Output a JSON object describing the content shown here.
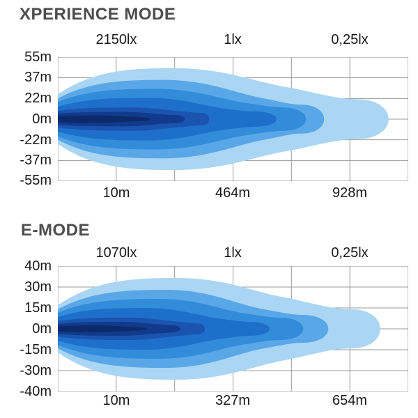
{
  "chart_data": [
    {
      "type": "contour",
      "title": "XPERIENCE MODE",
      "illuminance_labels": [
        "2150lx",
        "1lx",
        "0,25lx"
      ],
      "distance_labels": [
        "10m",
        "464m",
        "928m"
      ],
      "beam_width_labels": [
        "55m",
        "37m",
        "22m",
        "0m",
        "-22m",
        "-37m",
        "-55m"
      ],
      "lux_at_distance": [
        {
          "lux": "2150lx",
          "distance": "10m"
        },
        {
          "lux": "1lx",
          "distance": "464m"
        },
        {
          "lux": "0,25lx",
          "distance": "928m"
        }
      ],
      "grid": {
        "cols": 6,
        "rows": 6,
        "line_color": "#9a9a9a",
        "border_color": "#8a8a8a"
      },
      "bands": [
        {
          "color": "#aad6f3",
          "hL": 36,
          "xM": 165,
          "hM": 74,
          "xW": 335,
          "hW": 45,
          "xT": 428,
          "hT": 29,
          "tip": 472
        },
        {
          "color": "#5aa7e8",
          "hL": 30,
          "xM": 150,
          "hM": 57,
          "xW": 300,
          "hW": 29,
          "xT": 348,
          "hT": 21,
          "tip": 380
        },
        {
          "color": "#338cda",
          "hL": 25,
          "xM": 140,
          "hM": 44,
          "xW": 272,
          "hW": 23,
          "xT": 322,
          "hT": 17,
          "tip": 354
        },
        {
          "color": "#1e6fca",
          "hL": 18,
          "xM": 128,
          "hM": 31,
          "xW": 240,
          "hW": 15,
          "xT": 282,
          "hT": 11,
          "tip": 312
        },
        {
          "color": "#1a54ae",
          "hL": 12,
          "xM": 105,
          "hM": 17,
          "xW": 180,
          "hW": 11,
          "xT": 205,
          "hT": 9,
          "tip": 216
        },
        {
          "color": "#123a8c",
          "hL": 8,
          "xM": 92,
          "hM": 10.5,
          "xW": 150,
          "hW": 7,
          "xT": 166,
          "hT": 6,
          "tip": 181
        },
        {
          "color": "#0c2a6a",
          "hL": 4,
          "xM": 55,
          "hM": 5.5,
          "xW": 92,
          "hW": 4,
          "xT": 104,
          "hT": 3.5,
          "tip": 132
        }
      ]
    },
    {
      "type": "contour",
      "title": "E-MODE",
      "illuminance_labels": [
        "1070lx",
        "1lx",
        "0,25lx"
      ],
      "distance_labels": [
        "10m",
        "327m",
        "654m"
      ],
      "beam_width_labels": [
        "40m",
        "30m",
        "15m",
        "0m",
        "-15m",
        "-30m",
        "-40m"
      ],
      "lux_at_distance": [
        {
          "lux": "1070lx",
          "distance": "10m"
        },
        {
          "lux": "1lx",
          "distance": "327m"
        },
        {
          "lux": "0,25lx",
          "distance": "654m"
        }
      ],
      "grid": {
        "cols": 6,
        "rows": 6,
        "line_color": "#9a9a9a",
        "border_color": "#8a8a8a"
      },
      "bands": [
        {
          "color": "#aad6f3",
          "hL": 34,
          "hM": 73,
          "xM": 170,
          "xW": 330,
          "hW": 44,
          "xT": 420,
          "hT": 28,
          "tip": 460
        },
        {
          "color": "#5aa7e8",
          "hL": 28,
          "hM": 56,
          "xM": 155,
          "xW": 295,
          "hW": 28,
          "xT": 350,
          "hT": 20,
          "tip": 386
        },
        {
          "color": "#338cda",
          "hL": 23,
          "hM": 43,
          "xM": 145,
          "xW": 268,
          "hW": 22,
          "xT": 318,
          "hT": 16,
          "tip": 350
        },
        {
          "color": "#1e6fca",
          "hL": 17,
          "hM": 30,
          "xM": 125,
          "xW": 235,
          "hW": 14,
          "xT": 275,
          "hT": 10,
          "tip": 302
        },
        {
          "color": "#1a54ae",
          "hL": 11,
          "hM": 16,
          "xM": 100,
          "xW": 175,
          "hW": 10,
          "xT": 198,
          "hT": 8,
          "tip": 210
        },
        {
          "color": "#123a8c",
          "hL": 7,
          "hM": 10,
          "xM": 88,
          "xW": 145,
          "hW": 6.5,
          "xT": 160,
          "hT": 5.5,
          "tip": 175
        },
        {
          "color": "#0c2a6a",
          "hL": 3.5,
          "hM": 5,
          "xM": 52,
          "xW": 88,
          "hW": 3.8,
          "xT": 98,
          "hT": 3.2,
          "tip": 126
        }
      ]
    }
  ]
}
